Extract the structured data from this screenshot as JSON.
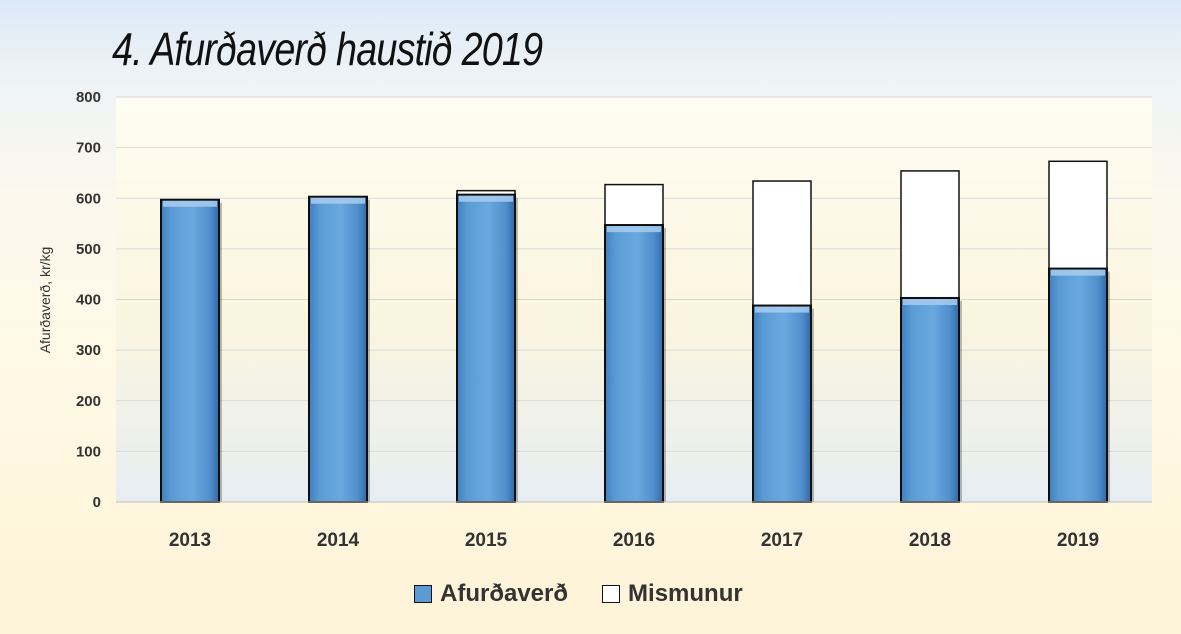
{
  "chart_data": {
    "type": "bar",
    "stacked": true,
    "title": "4. Afurðaverð haustið 2019",
    "ylabel": "Afurðaverð, kr/kg",
    "xlabel": "",
    "categories": [
      "2013",
      "2014",
      "2015",
      "2016",
      "2017",
      "2018",
      "2019"
    ],
    "ylim": [
      0,
      800
    ],
    "yticks": [
      0,
      100,
      200,
      300,
      400,
      500,
      600,
      700,
      800
    ],
    "grid": true,
    "legend_position": "bottom",
    "series": [
      {
        "name": "Afurðaverð",
        "values": [
          597,
          603,
          607,
          547,
          388,
          403,
          461
        ],
        "color": "#5b9bd5"
      },
      {
        "name": "Mismunur",
        "values": [
          0,
          0,
          8,
          80,
          246,
          251,
          212
        ],
        "color": "#ffffff"
      }
    ]
  }
}
